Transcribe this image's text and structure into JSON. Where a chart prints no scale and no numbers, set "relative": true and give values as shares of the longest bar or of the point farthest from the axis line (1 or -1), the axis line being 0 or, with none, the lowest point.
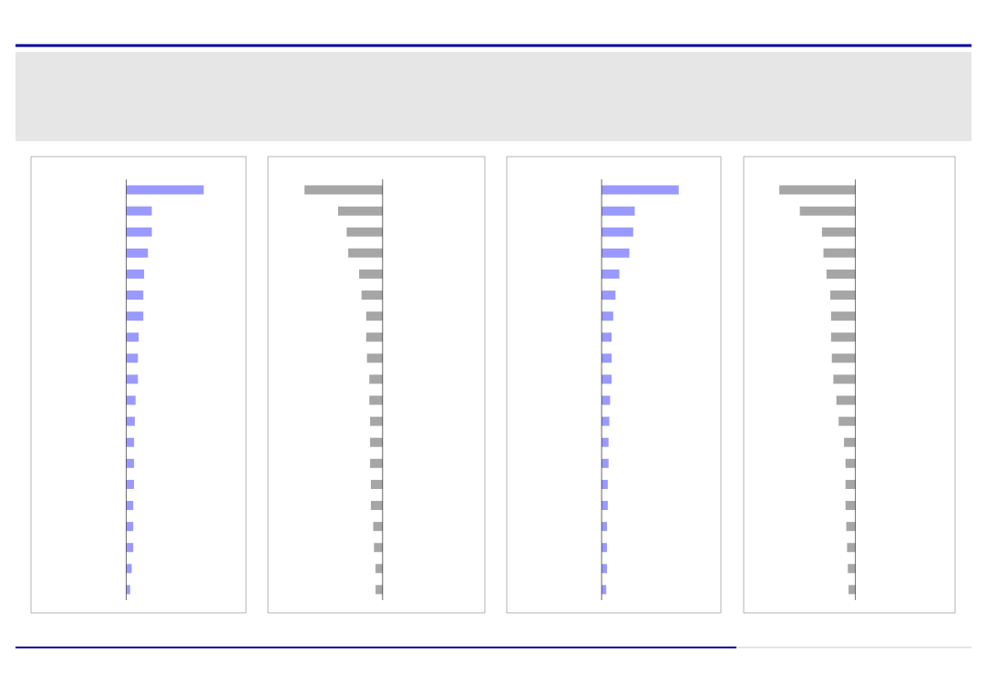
{
  "chart_data": [
    {
      "type": "bar",
      "orientation": "horizontal",
      "relative": true,
      "color": "#9999ff",
      "categories": [
        null,
        null,
        null,
        null,
        null,
        null,
        null,
        null,
        null,
        null,
        null,
        null,
        null,
        null,
        null,
        null,
        null,
        null,
        null,
        null
      ],
      "values": [
        1,
        0.33,
        0.33,
        0.28,
        0.23,
        0.22,
        0.22,
        0.16,
        0.15,
        0.15,
        0.12,
        0.11,
        0.1,
        0.1,
        0.1,
        0.09,
        0.09,
        0.09,
        0.07,
        0.05
      ]
    },
    {
      "type": "bar",
      "orientation": "horizontal",
      "relative": true,
      "color": "#a6a6a6",
      "categories": [
        null,
        null,
        null,
        null,
        null,
        null,
        null,
        null,
        null,
        null,
        null,
        null,
        null,
        null,
        null,
        null,
        null,
        null,
        null,
        null
      ],
      "values": [
        -1,
        -0.57,
        -0.46,
        -0.44,
        -0.3,
        -0.27,
        -0.21,
        -0.21,
        -0.2,
        -0.17,
        -0.17,
        -0.16,
        -0.16,
        -0.16,
        -0.15,
        -0.15,
        -0.12,
        -0.11,
        -0.09,
        -0.09
      ]
    },
    {
      "type": "bar",
      "orientation": "horizontal",
      "relative": true,
      "color": "#9999ff",
      "categories": [
        null,
        null,
        null,
        null,
        null,
        null,
        null,
        null,
        null,
        null,
        null,
        null,
        null,
        null,
        null,
        null,
        null,
        null,
        null,
        null
      ],
      "values": [
        1,
        0.43,
        0.41,
        0.36,
        0.23,
        0.18,
        0.15,
        0.13,
        0.13,
        0.13,
        0.11,
        0.1,
        0.09,
        0.09,
        0.08,
        0.08,
        0.07,
        0.07,
        0.07,
        0.06
      ]
    },
    {
      "type": "bar",
      "orientation": "horizontal",
      "relative": true,
      "color": "#a6a6a6",
      "categories": [
        null,
        null,
        null,
        null,
        null,
        null,
        null,
        null,
        null,
        null,
        null,
        null,
        null,
        null,
        null,
        null,
        null,
        null,
        null,
        null
      ],
      "values": [
        -1,
        -0.73,
        -0.44,
        -0.42,
        -0.38,
        -0.33,
        -0.32,
        -0.32,
        -0.31,
        -0.29,
        -0.25,
        -0.22,
        -0.15,
        -0.13,
        -0.13,
        -0.13,
        -0.12,
        -0.11,
        -0.1,
        -0.09
      ]
    }
  ]
}
